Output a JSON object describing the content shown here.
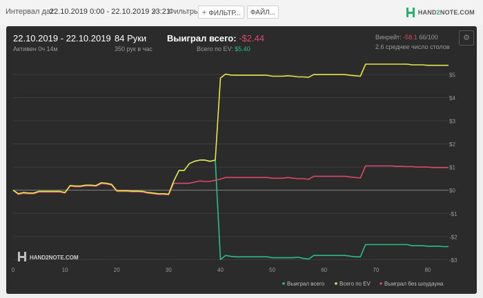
{
  "toolbar": {
    "interval_label": "Интервал дат:",
    "interval_value": "22.10.2019 0:00 - 22.10.2019 23:21",
    "filters_label": "Фильтры:",
    "filters_button": "ФИЛЬТР...",
    "files_button": "ФАЙЛ...",
    "logo_text_a": "HAND",
    "logo_text_b": "2",
    "logo_text_c": "NOTE.COM"
  },
  "summary": {
    "date_range": "22.10.2019 - 22.10.2019",
    "active_time": "Активен 0ч 14м",
    "hands": "84 Руки",
    "hands_per_hour": "350 рук в час",
    "won_total_label": "Выиграл всего:",
    "won_total_value": "-$2.44",
    "ev_label": "Всего по EV:",
    "ev_value": "$5.40",
    "winrate_label": "Винрейт:",
    "winrate_value": "-58.1",
    "winrate_suffix": "66/100",
    "tables_text": "2.6 среднее число столов"
  },
  "watermark": "HAND2NOTE.COM",
  "colors": {
    "won": "#27c28a",
    "ev": "#e8e84a",
    "no_showdown": "#e0476b"
  },
  "chart_data": {
    "type": "line",
    "xlim": [
      0,
      84
    ],
    "ylim": [
      -3.2,
      5.6
    ],
    "x_ticks": [
      0,
      10,
      20,
      30,
      40,
      50,
      60,
      70,
      80
    ],
    "y_ticks": [
      5,
      4,
      3,
      2,
      1,
      0,
      -1,
      -2,
      -3
    ],
    "y_tick_labels": [
      "$5",
      "$4",
      "$3",
      "$2",
      "$1",
      "$0",
      "-$1",
      "-$2",
      "-$3"
    ],
    "legend_position": "bottom-right",
    "series": [
      {
        "name": "Выиграл всего",
        "color": "#27c28a",
        "points": [
          [
            0,
            0
          ],
          [
            1,
            -0.15
          ],
          [
            2,
            -0.1
          ],
          [
            3,
            -0.12
          ],
          [
            4,
            -0.12
          ],
          [
            5,
            -0.05
          ],
          [
            6,
            -0.05
          ],
          [
            7,
            -0.05
          ],
          [
            8,
            -0.05
          ],
          [
            9,
            -0.05
          ],
          [
            10,
            -0.1
          ],
          [
            11,
            0.2
          ],
          [
            12,
            0.18
          ],
          [
            13,
            0.18
          ],
          [
            14,
            0.22
          ],
          [
            15,
            0.22
          ],
          [
            16,
            0.2
          ],
          [
            17,
            0.32
          ],
          [
            18,
            0.3
          ],
          [
            19,
            0.25
          ],
          [
            20,
            -0.02
          ],
          [
            21,
            -0.02
          ],
          [
            22,
            -0.02
          ],
          [
            23,
            -0.04
          ],
          [
            24,
            -0.04
          ],
          [
            25,
            -0.05
          ],
          [
            26,
            -0.1
          ],
          [
            27,
            -0.12
          ],
          [
            28,
            -0.15
          ],
          [
            29,
            -0.15
          ],
          [
            30,
            -0.17
          ],
          [
            31,
            0.4
          ],
          [
            32,
            0.85
          ],
          [
            33,
            0.85
          ],
          [
            34,
            1.15
          ],
          [
            35,
            1.25
          ],
          [
            36,
            1.3
          ],
          [
            37,
            1.3
          ],
          [
            38,
            1.25
          ],
          [
            39,
            1.3
          ],
          [
            40,
            -3.0
          ],
          [
            41,
            -2.82
          ],
          [
            42,
            -2.86
          ],
          [
            43,
            -2.88
          ],
          [
            44,
            -2.88
          ],
          [
            45,
            -2.88
          ],
          [
            46,
            -2.88
          ],
          [
            47,
            -2.88
          ],
          [
            48,
            -2.88
          ],
          [
            49,
            -2.88
          ],
          [
            50,
            -2.92
          ],
          [
            51,
            -2.92
          ],
          [
            52,
            -2.92
          ],
          [
            53,
            -2.92
          ],
          [
            54,
            -2.92
          ],
          [
            55,
            -2.9
          ],
          [
            56,
            -2.95
          ],
          [
            57,
            -2.98
          ],
          [
            58,
            -2.82
          ],
          [
            59,
            -2.82
          ],
          [
            60,
            -2.82
          ],
          [
            61,
            -2.82
          ],
          [
            62,
            -2.82
          ],
          [
            63,
            -2.82
          ],
          [
            64,
            -2.82
          ],
          [
            65,
            -2.85
          ],
          [
            66,
            -2.88
          ],
          [
            67,
            -2.88
          ],
          [
            68,
            -2.35
          ],
          [
            69,
            -2.35
          ],
          [
            70,
            -2.35
          ],
          [
            71,
            -2.35
          ],
          [
            72,
            -2.35
          ],
          [
            73,
            -2.35
          ],
          [
            74,
            -2.35
          ],
          [
            75,
            -2.35
          ],
          [
            76,
            -2.35
          ],
          [
            77,
            -2.4
          ],
          [
            78,
            -2.4
          ],
          [
            79,
            -2.4
          ],
          [
            80,
            -2.42
          ],
          [
            81,
            -2.42
          ],
          [
            82,
            -2.42
          ],
          [
            83,
            -2.44
          ],
          [
            84,
            -2.44
          ]
        ]
      },
      {
        "name": "Всего по EV",
        "color": "#e8e84a",
        "points": [
          [
            0,
            0
          ],
          [
            1,
            -0.15
          ],
          [
            2,
            -0.1
          ],
          [
            3,
            -0.12
          ],
          [
            4,
            -0.12
          ],
          [
            5,
            -0.05
          ],
          [
            6,
            -0.05
          ],
          [
            7,
            -0.05
          ],
          [
            8,
            -0.05
          ],
          [
            9,
            -0.05
          ],
          [
            10,
            -0.1
          ],
          [
            11,
            0.2
          ],
          [
            12,
            0.18
          ],
          [
            13,
            0.18
          ],
          [
            14,
            0.22
          ],
          [
            15,
            0.22
          ],
          [
            16,
            0.2
          ],
          [
            17,
            0.32
          ],
          [
            18,
            0.3
          ],
          [
            19,
            0.25
          ],
          [
            20,
            -0.02
          ],
          [
            21,
            -0.02
          ],
          [
            22,
            -0.02
          ],
          [
            23,
            -0.04
          ],
          [
            24,
            -0.04
          ],
          [
            25,
            -0.05
          ],
          [
            26,
            -0.1
          ],
          [
            27,
            -0.12
          ],
          [
            28,
            -0.15
          ],
          [
            29,
            -0.15
          ],
          [
            30,
            -0.17
          ],
          [
            31,
            0.4
          ],
          [
            32,
            0.85
          ],
          [
            33,
            0.85
          ],
          [
            34,
            1.15
          ],
          [
            35,
            1.25
          ],
          [
            36,
            1.3
          ],
          [
            37,
            1.3
          ],
          [
            38,
            1.25
          ],
          [
            39,
            1.3
          ],
          [
            40,
            4.85
          ],
          [
            41,
            5.02
          ],
          [
            42,
            4.98
          ],
          [
            43,
            4.97
          ],
          [
            44,
            4.97
          ],
          [
            45,
            4.97
          ],
          [
            46,
            4.97
          ],
          [
            47,
            4.97
          ],
          [
            48,
            4.97
          ],
          [
            49,
            4.97
          ],
          [
            50,
            4.93
          ],
          [
            51,
            4.93
          ],
          [
            52,
            4.93
          ],
          [
            53,
            4.95
          ],
          [
            54,
            4.93
          ],
          [
            55,
            4.9
          ],
          [
            56,
            4.9
          ],
          [
            57,
            4.88
          ],
          [
            58,
            5.0
          ],
          [
            59,
            5.0
          ],
          [
            60,
            5.0
          ],
          [
            61,
            5.0
          ],
          [
            62,
            5.0
          ],
          [
            63,
            5.0
          ],
          [
            64,
            5.0
          ],
          [
            65,
            4.97
          ],
          [
            66,
            4.95
          ],
          [
            67,
            4.93
          ],
          [
            68,
            5.45
          ],
          [
            69,
            5.45
          ],
          [
            70,
            5.45
          ],
          [
            71,
            5.45
          ],
          [
            72,
            5.45
          ],
          [
            73,
            5.45
          ],
          [
            74,
            5.45
          ],
          [
            75,
            5.45
          ],
          [
            76,
            5.45
          ],
          [
            77,
            5.42
          ],
          [
            78,
            5.42
          ],
          [
            79,
            5.42
          ],
          [
            80,
            5.4
          ],
          [
            81,
            5.4
          ],
          [
            82,
            5.4
          ],
          [
            83,
            5.4
          ],
          [
            84,
            5.4
          ]
        ]
      },
      {
        "name": "Выиграл без шоудауна",
        "color": "#e0476b",
        "points": [
          [
            0,
            0
          ],
          [
            1,
            -0.18
          ],
          [
            2,
            -0.14
          ],
          [
            3,
            -0.15
          ],
          [
            4,
            -0.15
          ],
          [
            5,
            -0.08
          ],
          [
            6,
            -0.08
          ],
          [
            7,
            -0.08
          ],
          [
            8,
            -0.08
          ],
          [
            9,
            -0.08
          ],
          [
            10,
            -0.12
          ],
          [
            11,
            0.17
          ],
          [
            12,
            0.15
          ],
          [
            13,
            0.15
          ],
          [
            14,
            0.19
          ],
          [
            15,
            0.19
          ],
          [
            16,
            0.17
          ],
          [
            17,
            0.28
          ],
          [
            18,
            0.27
          ],
          [
            19,
            0.22
          ],
          [
            20,
            -0.05
          ],
          [
            21,
            -0.05
          ],
          [
            22,
            -0.05
          ],
          [
            23,
            -0.07
          ],
          [
            24,
            -0.07
          ],
          [
            25,
            -0.08
          ],
          [
            26,
            -0.13
          ],
          [
            27,
            -0.15
          ],
          [
            28,
            -0.18
          ],
          [
            29,
            -0.18
          ],
          [
            30,
            -0.2
          ],
          [
            31,
            0.3
          ],
          [
            32,
            0.3
          ],
          [
            33,
            0.3
          ],
          [
            34,
            0.3
          ],
          [
            35,
            0.35
          ],
          [
            36,
            0.4
          ],
          [
            37,
            0.38
          ],
          [
            38,
            0.38
          ],
          [
            39,
            0.43
          ],
          [
            40,
            0.48
          ],
          [
            41,
            0.55
          ],
          [
            42,
            0.55
          ],
          [
            43,
            0.55
          ],
          [
            44,
            0.55
          ],
          [
            45,
            0.55
          ],
          [
            46,
            0.55
          ],
          [
            47,
            0.55
          ],
          [
            48,
            0.55
          ],
          [
            49,
            0.55
          ],
          [
            50,
            0.52
          ],
          [
            51,
            0.52
          ],
          [
            52,
            0.52
          ],
          [
            53,
            0.55
          ],
          [
            54,
            0.52
          ],
          [
            55,
            0.5
          ],
          [
            56,
            0.5
          ],
          [
            57,
            0.47
          ],
          [
            58,
            0.6
          ],
          [
            59,
            0.6
          ],
          [
            60,
            0.6
          ],
          [
            61,
            0.6
          ],
          [
            62,
            0.6
          ],
          [
            63,
            0.6
          ],
          [
            64,
            0.6
          ],
          [
            65,
            0.57
          ],
          [
            66,
            0.55
          ],
          [
            67,
            0.53
          ],
          [
            68,
            1.05
          ],
          [
            69,
            1.05
          ],
          [
            70,
            1.05
          ],
          [
            71,
            1.05
          ],
          [
            72,
            1.05
          ],
          [
            73,
            1.05
          ],
          [
            74,
            1.03
          ],
          [
            75,
            1.03
          ],
          [
            76,
            1.02
          ],
          [
            77,
            1.02
          ],
          [
            78,
            1.0
          ],
          [
            79,
            1.0
          ],
          [
            80,
            1.0
          ],
          [
            81,
            0.98
          ],
          [
            82,
            0.98
          ],
          [
            83,
            0.98
          ],
          [
            84,
            0.98
          ]
        ]
      }
    ]
  }
}
